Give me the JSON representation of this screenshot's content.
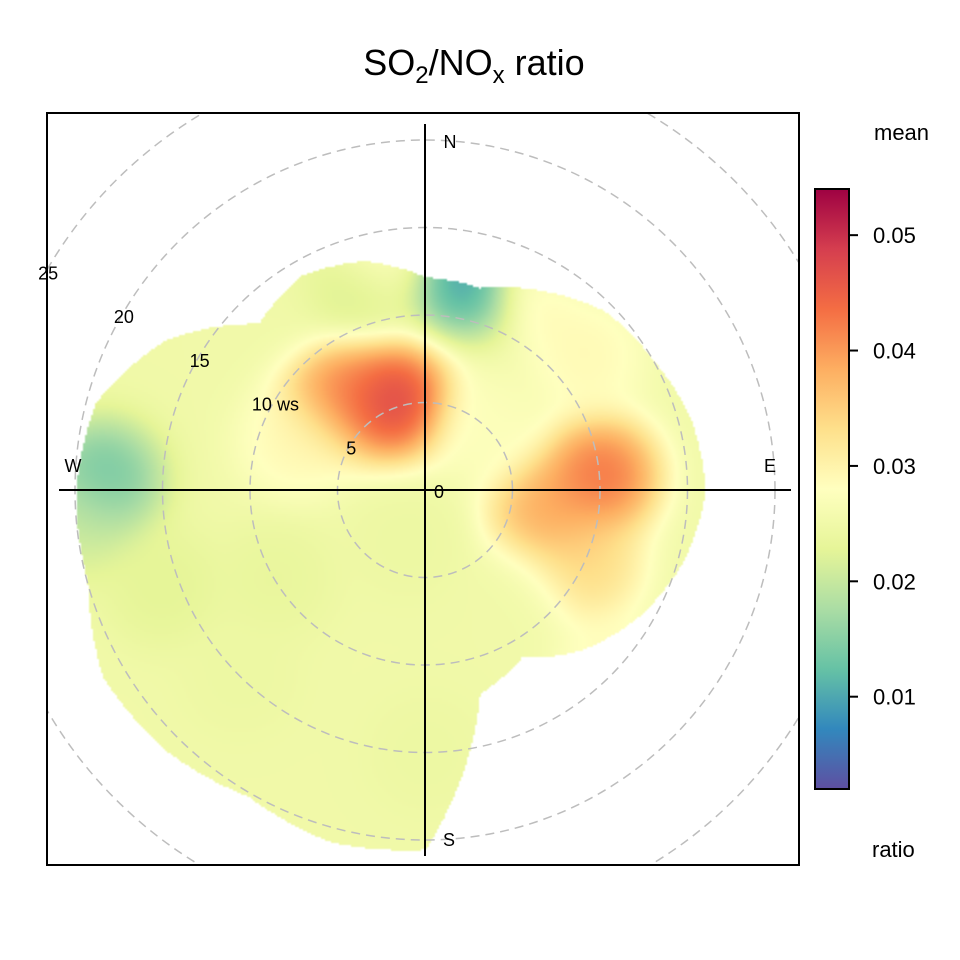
{
  "chart_data": {
    "type": "heatmap",
    "subtype": "polar",
    "title": {
      "parts": [
        {
          "text": "SO",
          "style": "normal"
        },
        {
          "text": "2",
          "style": "sub"
        },
        {
          "text": "/NO",
          "style": "normal"
        },
        {
          "text": "x",
          "style": "sub"
        },
        {
          "text": " ratio",
          "style": "normal"
        }
      ]
    },
    "directions": [
      "N",
      "E",
      "S",
      "W"
    ],
    "radial_axis": {
      "max": 25,
      "rings": [
        5,
        10,
        15,
        20,
        25
      ],
      "labels": [
        {
          "value": 0,
          "text": "0"
        },
        {
          "value": 5,
          "text": "5"
        },
        {
          "value": 10,
          "text": "10 ws"
        },
        {
          "value": 15,
          "text": "15"
        },
        {
          "value": 20,
          "text": "20"
        },
        {
          "value": 25,
          "text": "25"
        }
      ],
      "grid": true
    },
    "colorbar": {
      "label_top": "mean",
      "label_bottom": "ratio",
      "min": 0.002,
      "max": 0.054,
      "ticks": [
        0.01,
        0.02,
        0.03,
        0.04,
        0.05
      ],
      "tick_labels": [
        "0.01",
        "0.02",
        "0.03",
        "0.04",
        "0.05"
      ],
      "palette": [
        "#5e4fa2",
        "#3288bd",
        "#66c2a5",
        "#abdda4",
        "#e6f598",
        "#ffffbf",
        "#fee08b",
        "#fdae61",
        "#f46d43",
        "#d53e4f",
        "#9e0142"
      ]
    },
    "coverage_ws": [
      [
        0,
        12.2
      ],
      [
        15,
        12.0
      ],
      [
        30,
        13.2
      ],
      [
        45,
        14.5
      ],
      [
        60,
        15.0
      ],
      [
        75,
        15.7
      ],
      [
        90,
        16.0
      ],
      [
        105,
        15.3
      ],
      [
        120,
        14.2
      ],
      [
        135,
        12.8
      ],
      [
        150,
        11.0
      ],
      [
        165,
        12.0
      ],
      [
        180,
        20.5
      ],
      [
        195,
        20.8
      ],
      [
        210,
        20.2
      ],
      [
        225,
        21.0
      ],
      [
        240,
        21.3
      ],
      [
        255,
        20.0
      ],
      [
        270,
        20.0
      ],
      [
        285,
        19.5
      ],
      [
        300,
        17.2
      ],
      [
        315,
        13.5
      ],
      [
        330,
        14.2
      ],
      [
        345,
        13.6
      ]
    ],
    "hotspots": [
      {
        "direction_deg": 340,
        "ws": 5.5,
        "mean": 0.054
      },
      {
        "direction_deg": 320,
        "ws": 7.5,
        "mean": 0.045
      },
      {
        "direction_deg": 85,
        "ws": 10,
        "mean": 0.048
      },
      {
        "direction_deg": 100,
        "ws": 7,
        "mean": 0.042
      },
      {
        "direction_deg": 30,
        "ws": 14,
        "mean": 0.033
      },
      {
        "direction_deg": 50,
        "ws": 12,
        "mean": 0.03
      },
      {
        "direction_deg": 115,
        "ws": 10,
        "mean": 0.036
      },
      {
        "direction_deg": 135,
        "ws": 15,
        "mean": 0.03
      },
      {
        "direction_deg": 350,
        "ws": 14,
        "mean": 0.03
      },
      {
        "direction_deg": 10,
        "ws": 12.5,
        "mean": 0.005
      },
      {
        "direction_deg": 340,
        "ws": 12,
        "mean": 0.02
      },
      {
        "direction_deg": 320,
        "ws": 13.5,
        "mean": 0.025
      },
      {
        "direction_deg": 272,
        "ws": 18.5,
        "mean": 0.01
      },
      {
        "direction_deg": 265,
        "ws": 20,
        "mean": 0.02
      },
      {
        "direction_deg": 30,
        "ws": 15.5,
        "mean": 0.02
      },
      {
        "direction_deg": 200,
        "ws": 3,
        "mean": 0.024
      },
      {
        "direction_deg": 240,
        "ws": 10,
        "mean": 0.023
      },
      {
        "direction_deg": 180,
        "ws": 15,
        "mean": 0.024
      },
      {
        "direction_deg": 225,
        "ws": 15,
        "mean": 0.024
      },
      {
        "direction_deg": 250,
        "ws": 16,
        "mean": 0.022
      },
      {
        "direction_deg": 290,
        "ws": 8,
        "mean": 0.03
      },
      {
        "direction_deg": 45,
        "ws": 5,
        "mean": 0.028
      },
      {
        "direction_deg": 140,
        "ws": 8,
        "mean": 0.025
      }
    ],
    "background_mean": 0.025
  }
}
